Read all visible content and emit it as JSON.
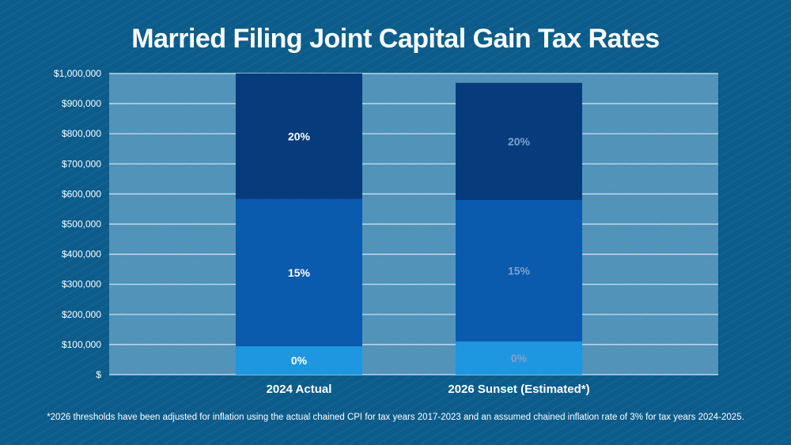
{
  "chart_data": {
    "type": "bar",
    "stacked": true,
    "title": "Married Filing Joint Capital Gain Tax Rates",
    "categories": [
      "2024 Actual",
      "2026 Sunset (Estimated*)"
    ],
    "series": [
      {
        "name": "0%",
        "label": "0%",
        "values": [
          94050,
          110000
        ],
        "color": "#1e96e0"
      },
      {
        "name": "15%",
        "label": "15%",
        "values": [
          489050,
          470000
        ],
        "color": "#0a5aad"
      },
      {
        "name": "20%",
        "label": "20%",
        "values": [
          416900,
          389000
        ],
        "color": "#063c7c"
      }
    ],
    "ylim": [
      0,
      1000000
    ],
    "yticks": [
      0,
      100000,
      200000,
      300000,
      400000,
      500000,
      600000,
      700000,
      800000,
      900000,
      1000000
    ],
    "ytick_labels": [
      "$",
      "$100,000",
      "$200,000",
      "$300,000",
      "$400,000",
      "$500,000",
      "$600,000",
      "$700,000",
      "$800,000",
      "$900,000",
      "$1,000,000"
    ],
    "xlabel": "",
    "ylabel": "",
    "grid": true,
    "label_colors": [
      "#ffffff",
      "#7fa2cc"
    ]
  },
  "footnote": "*2026 thresholds have been adjusted for inflation using the actual chained CPI for tax years 2017-2023 and an assumed chained inflation rate of 3% for tax years 2024-2025."
}
